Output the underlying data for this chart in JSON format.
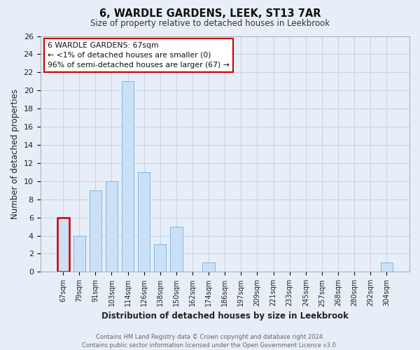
{
  "title": "6, WARDLE GARDENS, LEEK, ST13 7AR",
  "subtitle": "Size of property relative to detached houses in Leekbrook",
  "xlabel": "Distribution of detached houses by size in Leekbrook",
  "ylabel": "Number of detached properties",
  "bin_labels": [
    "67sqm",
    "79sqm",
    "91sqm",
    "103sqm",
    "114sqm",
    "126sqm",
    "138sqm",
    "150sqm",
    "162sqm",
    "174sqm",
    "186sqm",
    "197sqm",
    "209sqm",
    "221sqm",
    "233sqm",
    "245sqm",
    "257sqm",
    "268sqm",
    "280sqm",
    "292sqm",
    "304sqm"
  ],
  "bar_heights": [
    6,
    4,
    9,
    10,
    21,
    11,
    3,
    5,
    0,
    1,
    0,
    0,
    0,
    0,
    0,
    0,
    0,
    0,
    0,
    0,
    1
  ],
  "bar_color": "#cce0f5",
  "bar_edge_color": "#7ab8e8",
  "highlight_bar_index": 0,
  "highlight_bar_color": "#cc0000",
  "ylim": [
    0,
    26
  ],
  "yticks": [
    0,
    2,
    4,
    6,
    8,
    10,
    12,
    14,
    16,
    18,
    20,
    22,
    24,
    26
  ],
  "annotation_title": "6 WARDLE GARDENS: 67sqm",
  "annotation_line1": "← <1% of detached houses are smaller (0)",
  "annotation_line2": "96% of semi-detached houses are larger (67) →",
  "annotation_box_color": "#ffffff",
  "annotation_box_edge_color": "#cc0000",
  "footer_line1": "Contains HM Land Registry data © Crown copyright and database right 2024.",
  "footer_line2": "Contains public sector information licensed under the Open Government Licence v3.0.",
  "grid_color": "#c8d4e8",
  "background_color": "#e8eef8"
}
